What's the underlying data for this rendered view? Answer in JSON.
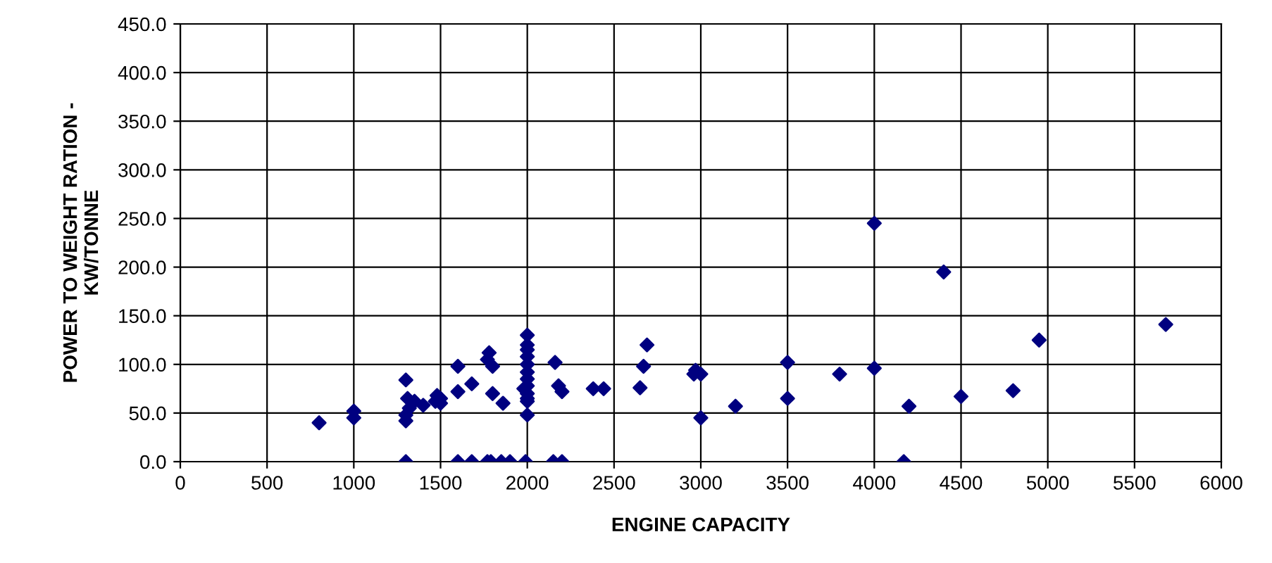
{
  "chart_data": {
    "type": "scatter",
    "xlabel": "ENGINE CAPACITY",
    "ylabel": "POWER TO WEIGHT RATION -\nKW/TONNE",
    "x": [
      800,
      1000,
      1000,
      1300,
      1300,
      1300,
      1300,
      1310,
      1350,
      1320,
      1400,
      1470,
      1480,
      1500,
      1500,
      1600,
      1600,
      1600,
      1680,
      1680,
      1770,
      1780,
      1770,
      1800,
      1800,
      1790,
      1860,
      1850,
      1900,
      1990,
      2000,
      2000,
      2000,
      2000,
      2000,
      2000,
      2000,
      2000,
      2000,
      2000,
      2000,
      1980,
      2000,
      2160,
      2180,
      2200,
      2150,
      2200,
      2380,
      2440,
      2650,
      2670,
      2690,
      2960,
      2970,
      3000,
      3000,
      3200,
      3500,
      3500,
      3800,
      4000,
      4000,
      4170,
      4200,
      4400,
      4500,
      4800,
      4950,
      5680
    ],
    "series": [
      {
        "color": "#000080",
        "values": [
          40,
          45,
          52,
          0,
          84,
          42,
          48,
          65,
          62,
          55,
          58,
          62,
          68,
          60,
          65,
          0,
          98,
          72,
          80,
          0,
          0,
          112,
          105,
          98,
          70,
          0,
          60,
          0,
          0,
          0,
          130,
          120,
          115,
          108,
          100,
          92,
          85,
          78,
          70,
          65,
          48,
          75,
          62,
          102,
          78,
          72,
          0,
          0,
          75,
          75,
          76,
          98,
          120,
          90,
          94,
          90,
          45,
          57,
          102,
          65,
          90,
          96,
          245,
          0,
          57,
          195,
          67,
          73,
          125,
          141
        ]
      }
    ],
    "marker": "diamond",
    "grid": true,
    "xlim": [
      0,
      6000
    ],
    "xticks": [
      0,
      500,
      1000,
      1500,
      2000,
      2500,
      3000,
      3500,
      4000,
      4500,
      5000,
      5500,
      6000
    ],
    "ylim": [
      0,
      450
    ],
    "yticks": [
      {
        "value": 0,
        "label": "0.0"
      },
      {
        "value": 50,
        "label": "50.0"
      },
      {
        "value": 100,
        "label": "100.0"
      },
      {
        "value": 150,
        "label": "150.0"
      },
      {
        "value": 200,
        "label": "200.0"
      },
      {
        "value": 250,
        "label": "250.0"
      },
      {
        "value": 300,
        "label": "300.0"
      },
      {
        "value": 350,
        "label": "350.0"
      },
      {
        "value": 400,
        "label": "400.0"
      },
      {
        "value": 450,
        "label": "450.0"
      }
    ]
  }
}
